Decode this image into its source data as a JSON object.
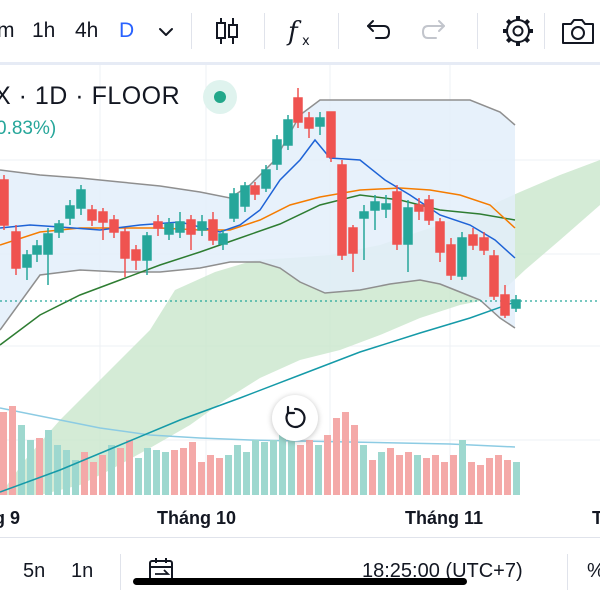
{
  "toolbar": {
    "interval_partial": "m",
    "interval_1h": "1h",
    "interval_4h": "4h",
    "interval_d": "D"
  },
  "legend": {
    "title_partial": "X · 1D · FLOOR",
    "change_partial": "0.83%)"
  },
  "x_axis": {
    "label_sep_partial": "g 9",
    "label_oct": "Tháng 10",
    "label_nov": "Tháng 11",
    "label_right_partial": "T"
  },
  "bottom_bar": {
    "range_5n": "5n",
    "range_1n": "1n",
    "time": "18:25:00 (UTC+7)",
    "right_partial": "%"
  },
  "colors": {
    "up": "#26a69a",
    "down": "#ef5350",
    "accent": "#2962ff",
    "bollinger_band": "#e3eefa",
    "cloud": "#c9e6cc"
  },
  "icons": [
    "chevron-down-icon",
    "candles-icon",
    "indicators-icon",
    "undo-icon",
    "redo-icon",
    "settings-icon",
    "camera-icon",
    "reset-view-icon",
    "calendar-goto-icon"
  ]
}
